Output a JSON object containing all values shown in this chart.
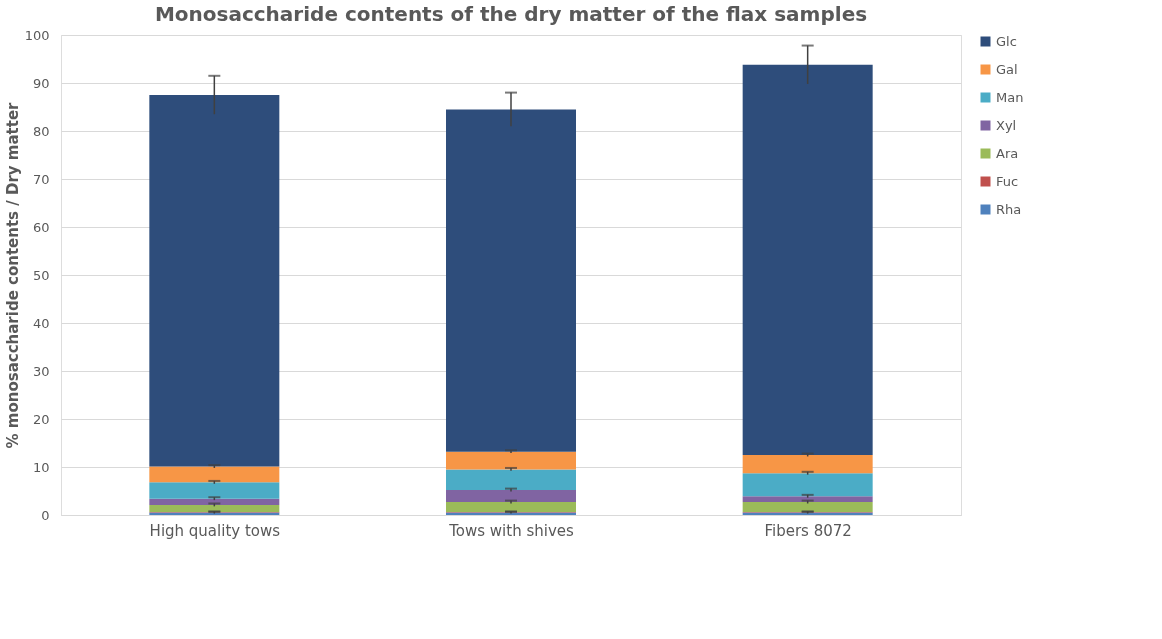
{
  "chart_data": {
    "type": "bar",
    "title": "Monosaccharide contents of the dry matter of the flax samples",
    "ylabel": "% monosaccharide contents / Dry matter",
    "categories": [
      "High quality tows",
      "Tows with shives",
      "Fibers 8072"
    ],
    "stacked": true,
    "series": [
      {
        "name": "Rha",
        "color": "#4f81bd",
        "values": [
          0.5,
          0.5,
          0.5
        ],
        "errors": [
          0.2,
          0.2,
          0.2
        ]
      },
      {
        "name": "Fuc",
        "color": "#c0504d",
        "values": [
          0.1,
          0.1,
          0.1
        ],
        "errors": [
          0.1,
          0.1,
          0.1
        ]
      },
      {
        "name": "Ara",
        "color": "#9bbb59",
        "values": [
          1.5,
          2.1,
          2.1
        ],
        "errors": [
          0.3,
          0.3,
          0.3
        ]
      },
      {
        "name": "Xyl",
        "color": "#8064a2",
        "values": [
          1.3,
          2.5,
          1.2
        ],
        "errors": [
          0.3,
          0.3,
          0.3
        ]
      },
      {
        "name": "Man",
        "color": "#4bacc6",
        "values": [
          3.4,
          4.3,
          4.8
        ],
        "errors": [
          0.3,
          0.3,
          0.3
        ]
      },
      {
        "name": "Gal",
        "color": "#f79646",
        "values": [
          3.3,
          3.7,
          3.8
        ],
        "errors": [
          0.3,
          0.3,
          0.3
        ]
      },
      {
        "name": "Glc",
        "color": "#2e4d7b",
        "values": [
          77.4,
          71.3,
          81.3
        ],
        "errors": [
          4,
          3.5,
          4
        ]
      }
    ],
    "ylim": [
      0,
      100
    ],
    "yticks": [
      0,
      10,
      20,
      30,
      40,
      50,
      60,
      70,
      80,
      90,
      100
    ],
    "grid": "y",
    "legend": "right"
  }
}
